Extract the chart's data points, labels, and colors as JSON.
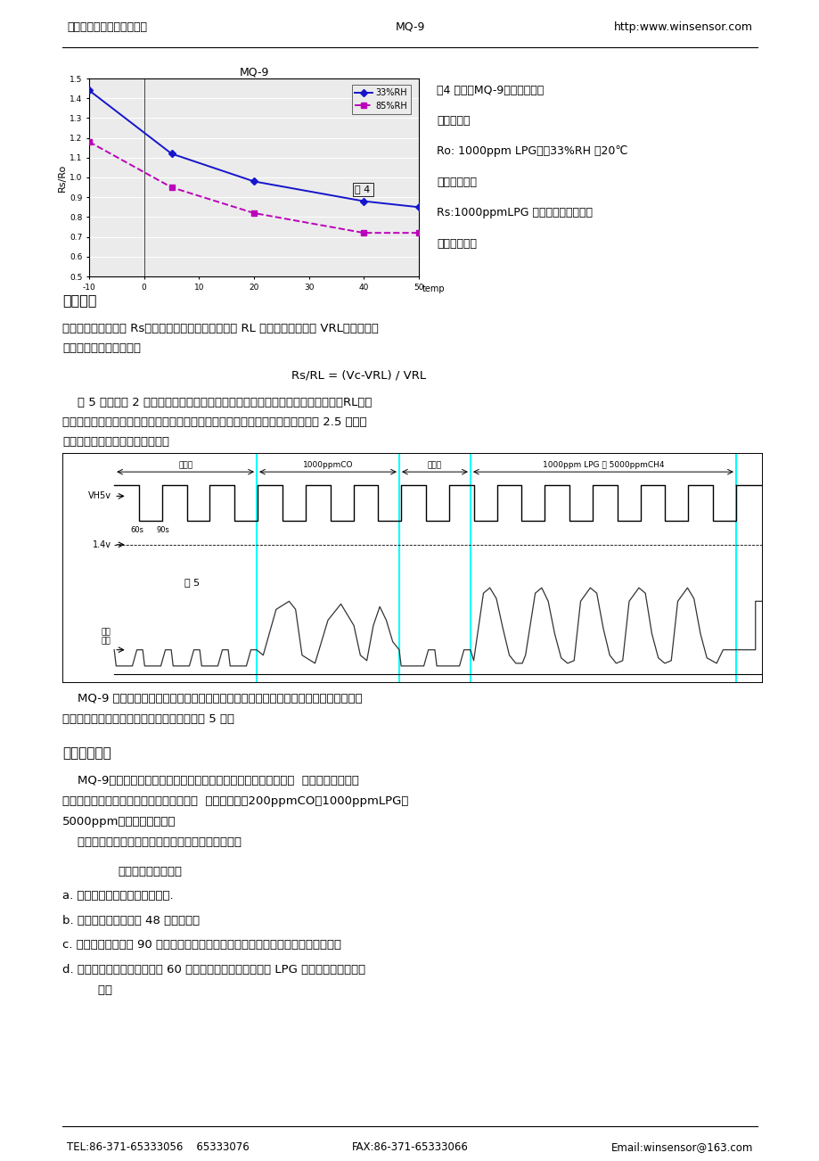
{
  "header_left": "郑州炜盛电子科技有限公司",
  "header_center": "MQ-9",
  "header_right": "http:www.winsensor.com",
  "footer_left": "TEL:86-371-65333056    65333076",
  "footer_center": "FAX:86-371-65333066",
  "footer_right": "Email:winsensor@163.com",
  "chart_title": "MQ-9",
  "chart_ylabel": "Rs/Ro",
  "chart_xlabel_label": "temp",
  "chart_xlim": [
    -10,
    50
  ],
  "chart_ylim": [
    0.5,
    1.5
  ],
  "chart_yticks": [
    0.5,
    0.6,
    0.7,
    0.8,
    0.9,
    1.0,
    1.1,
    1.2,
    1.3,
    1.4,
    1.5
  ],
  "chart_xticks": [
    -10,
    0,
    10,
    20,
    30,
    40,
    50
  ],
  "series1_label": "33%RH",
  "series1_color": "#1515cc",
  "series1_x": [
    -10,
    5,
    20,
    40,
    50
  ],
  "series1_y": [
    1.44,
    1.12,
    0.98,
    0.88,
    0.85
  ],
  "series2_label": "85%RH",
  "series2_color": "#bb00bb",
  "series2_x": [
    -10,
    5,
    20,
    40,
    50
  ],
  "series2_y": [
    1.18,
    0.95,
    0.82,
    0.72,
    0.72
  ],
  "fig4_label": "图 4",
  "right_col": [
    {
      "text": "图4 示出了MQ-9气敏元件的温",
      "bold": false
    },
    {
      "text": "湿度特性。",
      "bold": false
    },
    {
      "text": "Ro: 1000ppm LPG中，33%RH ，20℃",
      "bold": false
    },
    {
      "text": "下元件电阻。",
      "bold": false
    },
    {
      "text": "Rs:1000ppmLPG 中不同温度和湿度下",
      "bold": false
    },
    {
      "text": "元件的电阻。",
      "bold": false
    }
  ],
  "sec1_head": "工作原理",
  "sec1_t1": "．传感器的表面电阻 Rs，是通过与其串联的负载电阻 RL 上的有效电压信号 VRL输出而获得",
  "sec1_t2": "的。二者之间的关系为：",
  "sec1_formula": "Rs/RL = (Vc-VRL) / VRL",
  "sec1_t3": "    图 5 为利用图 2 回路测得在传感器由洁净空气转移至一氧化碳或甲烷气氛中时，RL上的",
  "sec1_t4": "信号输出变化情况，输出信号的测定是在一个完整的加热周期（由高电压至低电压 2.5 分钟）",
  "sec1_t5": "或在两个完整的加热周期内测得。",
  "fig5_top_labels": [
    "空气中",
    "1000ppmCO",
    "空气中",
    "1000ppm LPG 或 5000ppmCH4"
  ],
  "fig5_left_labels": [
    "VH5v",
    "1.4v",
    "负载\n电压"
  ],
  "fig5_label": "图 5",
  "fig5_time_labels": [
    "60s",
    "90s"
  ],
  "sec2_t1": "    MQ-9 型气敏元件的敏感层是用非常稳定的二氧化锡制成的。因此，它具有优秀的长期",
  "sec2_t2": "稳定性，在正常使用条件下，其使用寿命可达 5 年。",
  "sec3_head": "灵敏度调整：",
  "sec3_t1": "    MQ-9型气敏器件对不同种类，不同浓度的气体有不同的电阻值。  因此，在使用此类",
  "sec3_t2": "型气敏器件时，灵敏度的调整是很重要的。  我们建议您用200ppmCO或1000ppmLPG、",
  "sec3_t3": "5000ppm甲烷校正传感器。",
  "sec3_t4": "    当精确测量时，报警点的设定应考虑温湿度的影响。",
  "sec4_head": "        灵敏度的调整程序：",
  "sec4_a": "a. 将传感器连接在应用回路中。.",
  "sec4_b": "b. 接通电源，通电老化 48 小时以上。",
  "sec4_c": "c. 调节负载电阻直到 90 秒末时获得对应于某一个一氧化碳浓度时所需要的信号值。",
  "sec4_d1": "d. 调节另外一个负载电阻直到 60 秒末获得对应于某个甲烷或 LPG 浓度时所需要的信号",
  "sec4_d2": "    值。"
}
